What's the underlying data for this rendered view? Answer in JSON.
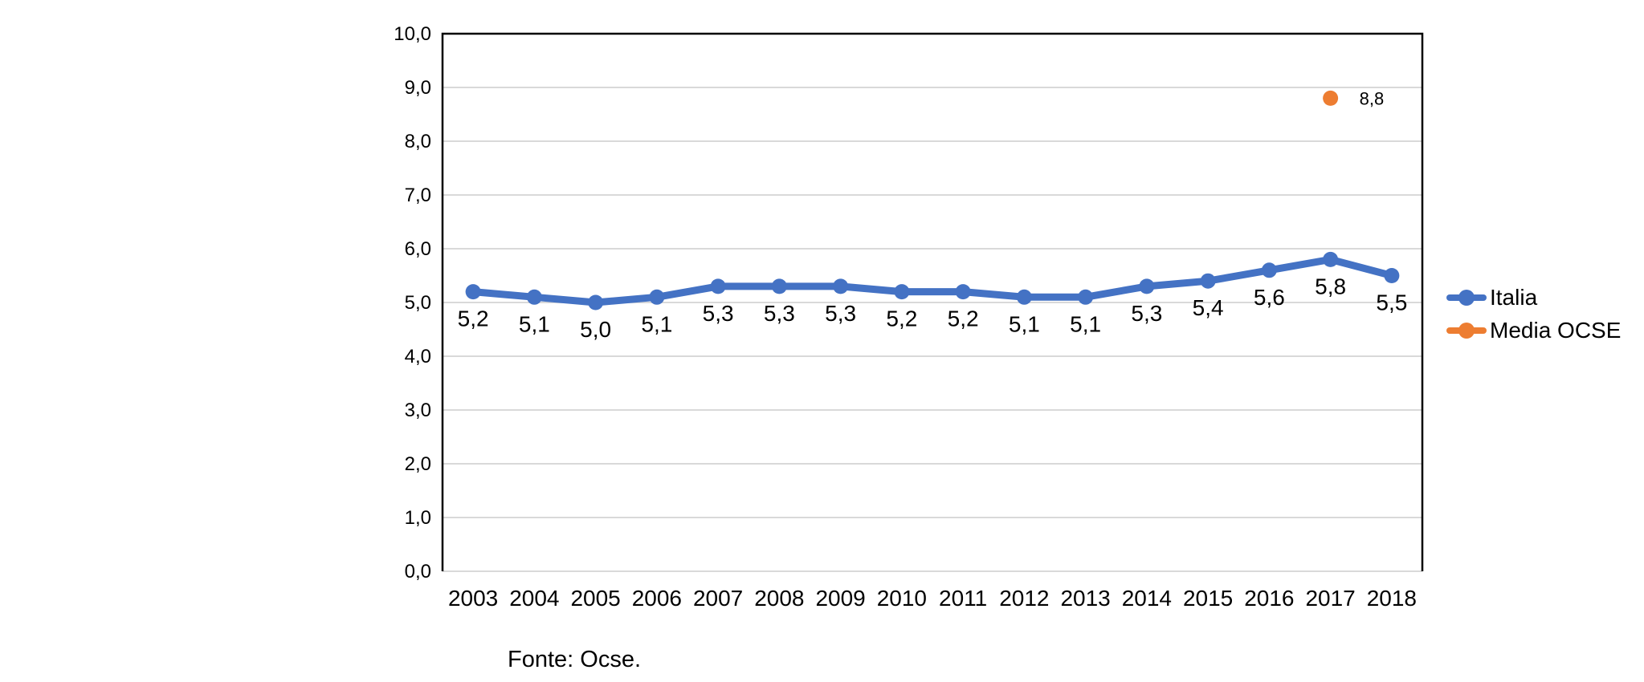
{
  "chart_data": {
    "type": "line",
    "categories": [
      "2003",
      "2004",
      "2005",
      "2006",
      "2007",
      "2008",
      "2009",
      "2010",
      "2011",
      "2012",
      "2013",
      "2014",
      "2015",
      "2016",
      "2017",
      "2018"
    ],
    "series": [
      {
        "name": "Italia",
        "type": "line",
        "color": "#4472C4",
        "values": [
          5.2,
          5.1,
          5.0,
          5.1,
          5.3,
          5.3,
          5.3,
          5.2,
          5.2,
          5.1,
          5.1,
          5.3,
          5.4,
          5.6,
          5.8,
          5.5
        ],
        "data_labels": [
          "5,2",
          "5,1",
          "5,0",
          "5,1",
          "5,3",
          "5,3",
          "5,3",
          "5,2",
          "5,2",
          "5,1",
          "5,1",
          "5,3",
          "5,4",
          "5,6",
          "5,8",
          "5,5"
        ]
      },
      {
        "name": "Media OCSE",
        "type": "scatter",
        "color": "#ED7D31",
        "points": [
          {
            "category": "2017",
            "value": 8.8,
            "label": "8,8"
          }
        ]
      }
    ],
    "title": "",
    "xlabel": "",
    "ylabel": "",
    "ylim": [
      0,
      10
    ],
    "ytick_step": 1,
    "ytick_labels": [
      "0,0",
      "1,0",
      "2,0",
      "3,0",
      "4,0",
      "5,0",
      "6,0",
      "7,0",
      "8,0",
      "9,0",
      "10,0"
    ],
    "grid": true,
    "gridline_color": "#D9D9D9",
    "axis_color": "#000000",
    "text_color": "#000000",
    "legend_position": "right"
  },
  "legend": {
    "items": [
      {
        "label": "Italia",
        "color": "#4472C4"
      },
      {
        "label": "Media OCSE",
        "color": "#ED7D31"
      }
    ]
  },
  "source_note": "Fonte: Ocse."
}
